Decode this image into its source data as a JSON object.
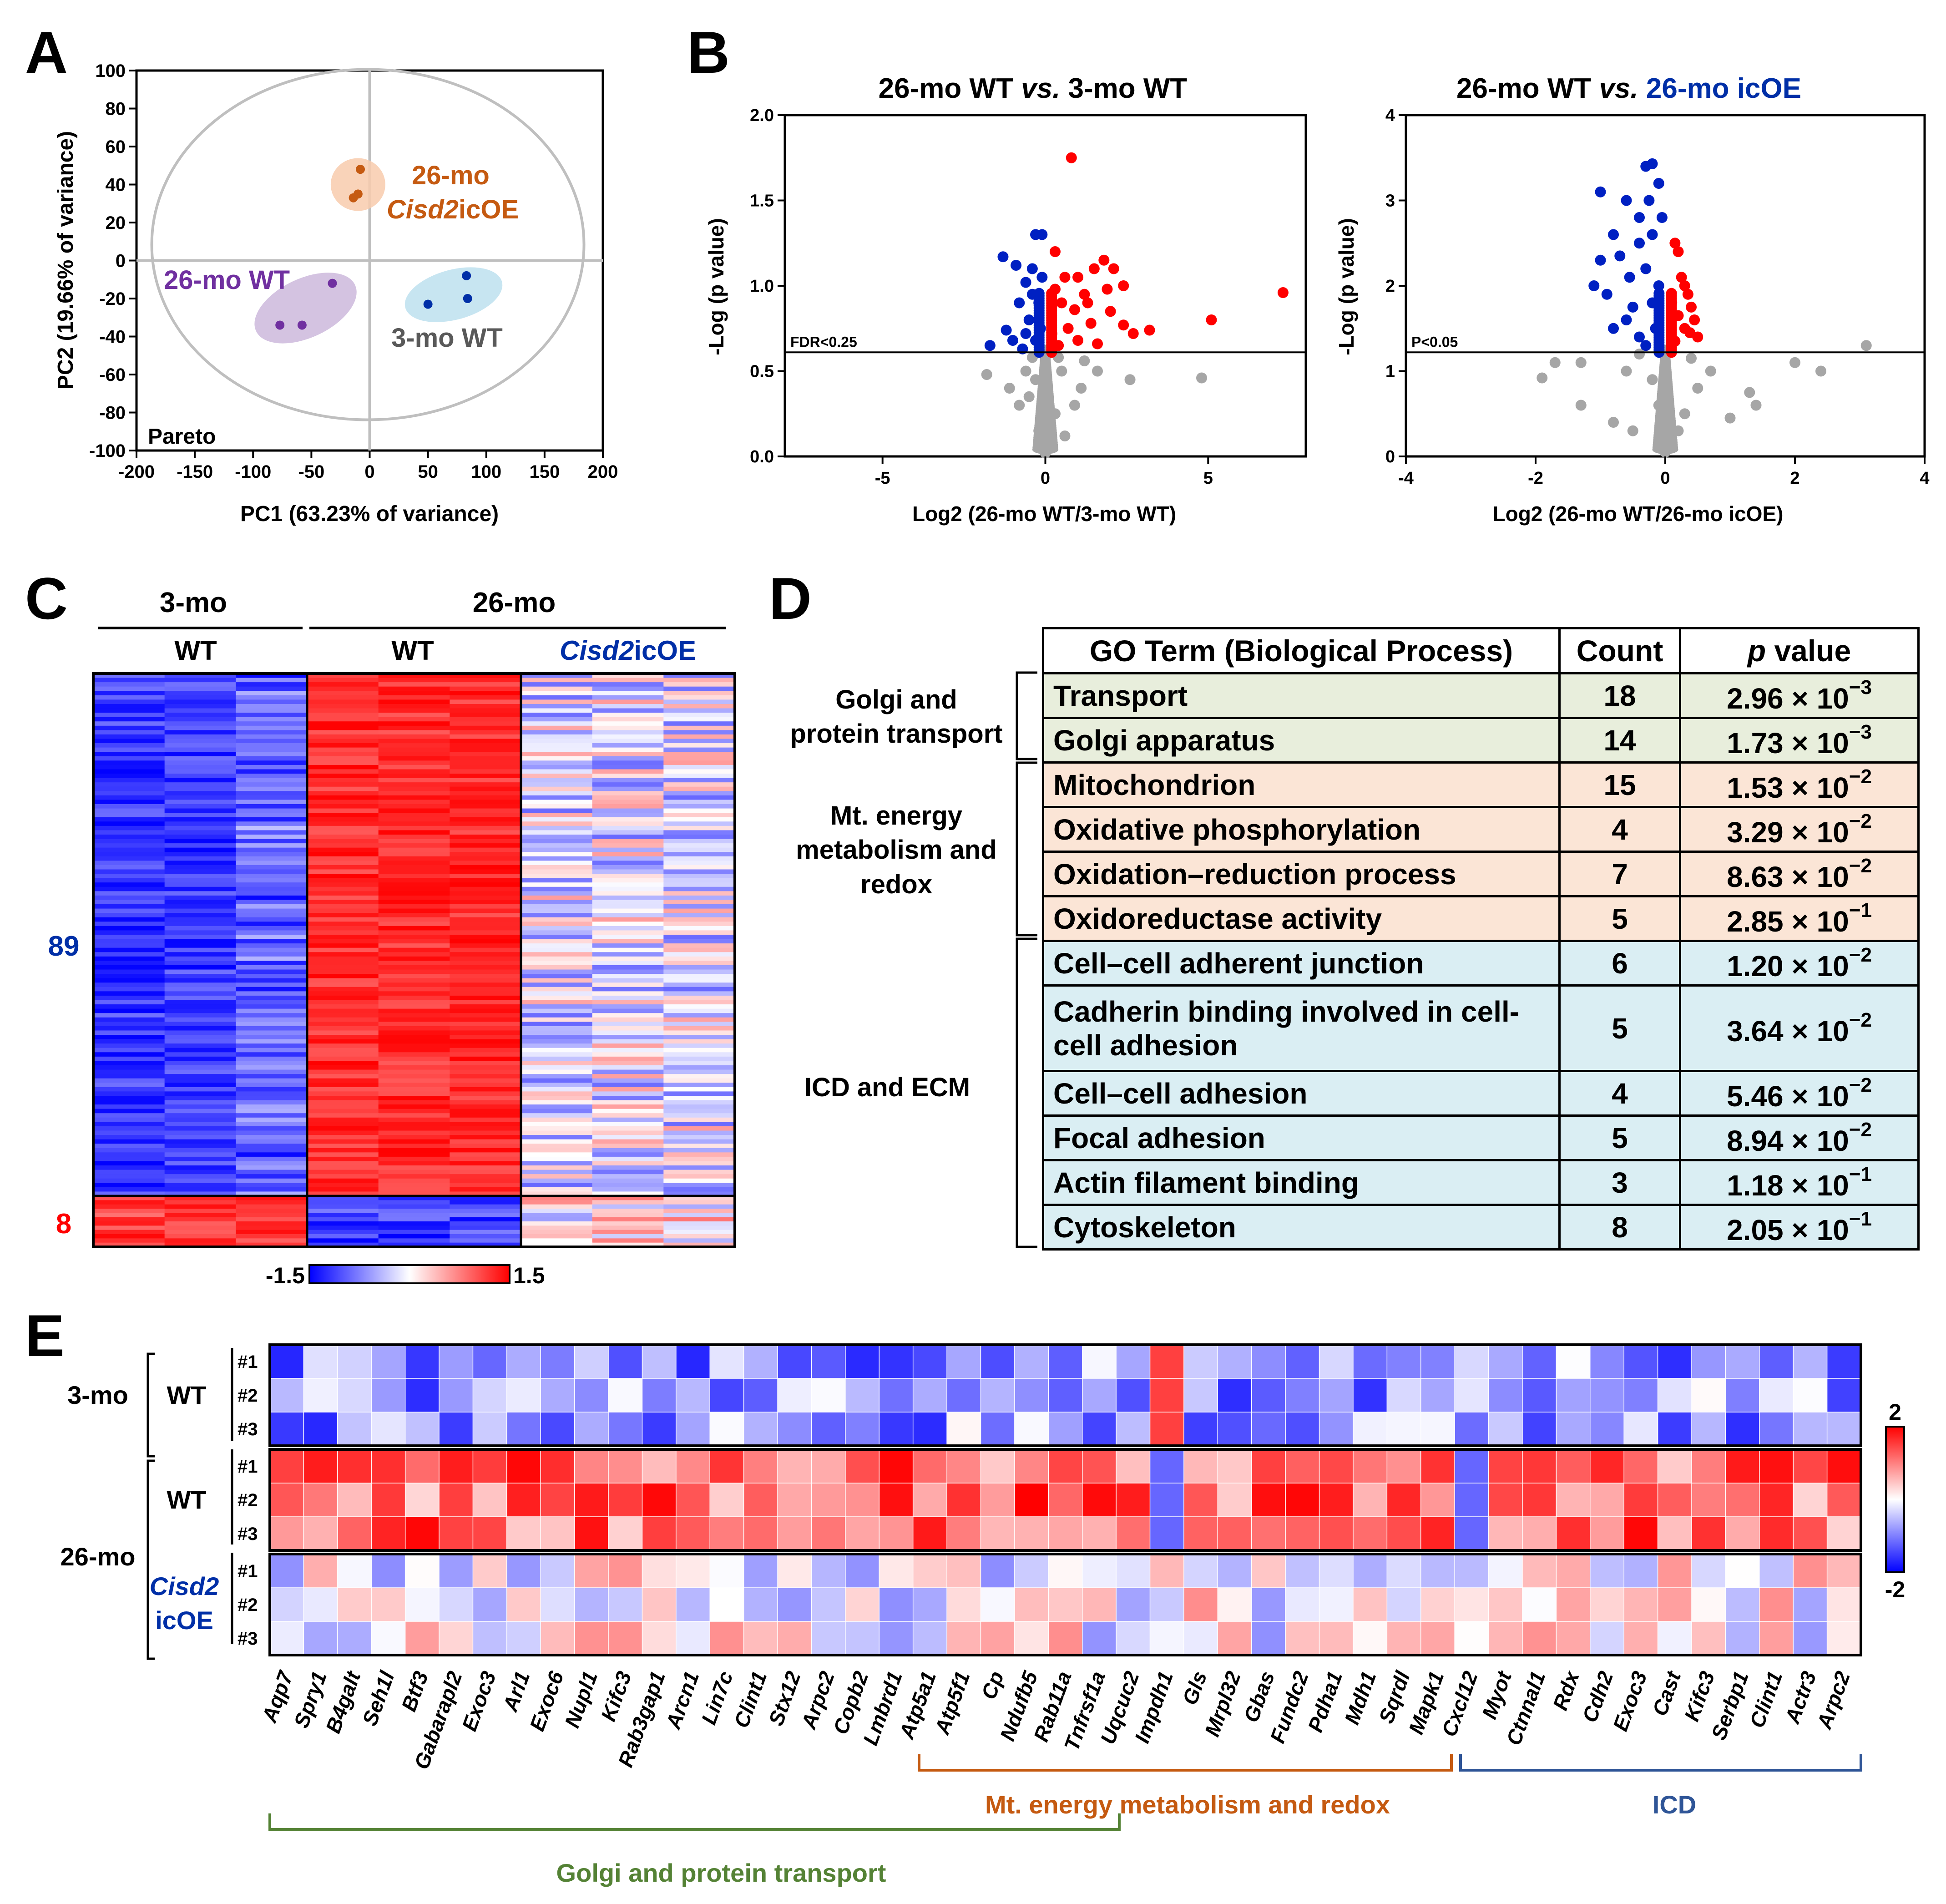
{
  "panels": {
    "A": "A",
    "B": "B",
    "C": "C",
    "D": "D",
    "E": "E"
  },
  "chart_data": [
    {
      "type": "scatter",
      "id": "pca",
      "title": "",
      "xlabel": "PC1 (63.23% of variance)",
      "ylabel": "PC2 (19.66% of variance)",
      "xlim": [
        -200,
        200
      ],
      "ylim": [
        -100,
        100
      ],
      "xticks": [
        -200,
        -150,
        -100,
        -50,
        0,
        50,
        100,
        150,
        200
      ],
      "yticks": [
        100,
        80,
        60,
        40,
        20,
        0,
        -20,
        -40,
        -60,
        -80,
        -100
      ],
      "annotation": "Pareto",
      "groups": [
        {
          "name_line1": "26-mo",
          "name_line2": "Cisd2",
          "name_line2b": "icOE",
          "color": "#c55a11",
          "fill": "#f8cbad",
          "points": [
            [
              -8,
              48
            ],
            [
              -10,
              35
            ],
            [
              -14,
              33
            ]
          ]
        },
        {
          "name": "26-mo WT",
          "color": "#7030a0",
          "fill": "#cdb8dc",
          "points": [
            [
              -77,
              -34
            ],
            [
              -58,
              -34
            ],
            [
              -32,
              -12
            ]
          ]
        },
        {
          "name": "3-mo WT",
          "color": "#002fa7",
          "fill": "#bde0ef",
          "points": [
            [
              50,
              -23
            ],
            [
              83,
              -8
            ],
            [
              84,
              -20
            ]
          ]
        }
      ]
    },
    {
      "type": "scatter",
      "id": "volcano1",
      "title_a": "26-mo WT ",
      "title_b": "vs.",
      "title_c": " 3-mo WT",
      "xlabel": "Log2 (26-mo WT/3-mo WT)",
      "ylabel": "-Log (p value)",
      "xlim": [
        -8,
        8
      ],
      "ylim": [
        0,
        2.0
      ],
      "xticks": [
        -5,
        0,
        5
      ],
      "yticks": [
        2.0,
        1.5,
        1.0,
        0.5,
        0.0
      ],
      "threshold": 0.61,
      "threshold_label": "FDR<0.25",
      "up_points": [
        [
          0.8,
          1.75
        ],
        [
          0.3,
          1.2
        ],
        [
          0.6,
          1.05
        ],
        [
          1.0,
          1.05
        ],
        [
          1.5,
          1.1
        ],
        [
          1.8,
          1.15
        ],
        [
          2.1,
          1.1
        ],
        [
          2.4,
          1.0
        ],
        [
          1.2,
          0.95
        ],
        [
          1.9,
          0.98
        ],
        [
          2.0,
          0.85
        ],
        [
          2.4,
          0.77
        ],
        [
          2.7,
          0.72
        ],
        [
          3.2,
          0.74
        ],
        [
          5.1,
          0.8
        ],
        [
          7.3,
          0.96
        ],
        [
          1.4,
          0.78
        ],
        [
          1.0,
          0.68
        ],
        [
          0.5,
          0.9
        ],
        [
          0.7,
          0.75
        ],
        [
          0.4,
          0.65
        ],
        [
          1.6,
          0.66
        ],
        [
          0.9,
          0.86
        ],
        [
          0.3,
          0.98
        ],
        [
          0.2,
          0.72
        ],
        [
          1.3,
          0.9
        ]
      ],
      "down_points": [
        [
          -0.3,
          1.3
        ],
        [
          -0.1,
          1.3
        ],
        [
          -1.3,
          1.17
        ],
        [
          -0.9,
          1.12
        ],
        [
          -0.6,
          1.02
        ],
        [
          -0.8,
          0.9
        ],
        [
          -0.4,
          0.95
        ],
        [
          -1.7,
          0.65
        ],
        [
          -1.2,
          0.74
        ],
        [
          -0.5,
          0.8
        ],
        [
          -0.2,
          0.9
        ],
        [
          -1.0,
          0.68
        ],
        [
          -0.3,
          0.68
        ],
        [
          -0.1,
          1.05
        ],
        [
          -0.7,
          0.63
        ],
        [
          -0.4,
          1.1
        ],
        [
          -0.15,
          0.75
        ],
        [
          -0.6,
          0.72
        ]
      ],
      "ns_points": [
        [
          4.8,
          0.46
        ],
        [
          0.0,
          0.55
        ],
        [
          -0.3,
          0.45
        ],
        [
          0.5,
          0.5
        ],
        [
          -0.5,
          0.35
        ],
        [
          0.3,
          0.25
        ],
        [
          -0.2,
          0.15
        ],
        [
          0.1,
          0.05
        ],
        [
          -1.8,
          0.48
        ],
        [
          1.6,
          0.5
        ],
        [
          2.6,
          0.45
        ],
        [
          -0.8,
          0.3
        ],
        [
          0.9,
          0.3
        ],
        [
          0.0,
          0.35
        ],
        [
          0.2,
          0.1
        ],
        [
          -0.1,
          0.2
        ],
        [
          0.6,
          0.12
        ],
        [
          -0.6,
          0.5
        ],
        [
          1.1,
          0.4
        ],
        [
          -1.1,
          0.4
        ],
        [
          0.0,
          0.02
        ],
        [
          0.4,
          0.58
        ],
        [
          -0.4,
          0.58
        ],
        [
          1.2,
          0.56
        ]
      ]
    },
    {
      "type": "scatter",
      "id": "volcano2",
      "title_a": "26-mo WT ",
      "title_b": "vs.",
      "title_c": " 26-mo icOE",
      "xlabel": "Log2 (26-mo WT/26-mo icOE)",
      "ylabel": "-Log (p value)",
      "xlim": [
        -4,
        4
      ],
      "ylim": [
        0,
        4
      ],
      "xticks": [
        -4,
        -2,
        0,
        2,
        4
      ],
      "yticks": [
        4,
        3,
        2,
        1,
        0
      ],
      "threshold": 1.22,
      "threshold_label": "P<0.05",
      "up_points": [
        [
          0.15,
          2.5
        ],
        [
          0.2,
          2.4
        ],
        [
          0.25,
          2.1
        ],
        [
          0.3,
          2.0
        ],
        [
          0.35,
          1.9
        ],
        [
          0.4,
          1.75
        ],
        [
          0.45,
          1.6
        ],
        [
          0.5,
          1.4
        ],
        [
          0.3,
          1.5
        ],
        [
          0.2,
          1.65
        ],
        [
          0.1,
          1.8
        ],
        [
          0.15,
          1.35
        ],
        [
          0.38,
          1.45
        ]
      ],
      "down_points": [
        [
          -0.3,
          3.4
        ],
        [
          -0.2,
          3.43
        ],
        [
          -0.1,
          3.2
        ],
        [
          -1.0,
          3.1
        ],
        [
          -0.6,
          3.0
        ],
        [
          -0.4,
          2.8
        ],
        [
          -0.8,
          2.6
        ],
        [
          -1.0,
          2.3
        ],
        [
          -0.7,
          2.35
        ],
        [
          -0.55,
          2.1
        ],
        [
          -1.1,
          2.0
        ],
        [
          -0.9,
          1.9
        ],
        [
          -0.4,
          2.5
        ],
        [
          -0.2,
          2.6
        ],
        [
          -0.3,
          2.2
        ],
        [
          -0.6,
          1.6
        ],
        [
          -0.1,
          2.0
        ],
        [
          -0.2,
          1.8
        ],
        [
          -0.4,
          1.4
        ],
        [
          -0.15,
          1.5
        ],
        [
          -0.3,
          1.3
        ],
        [
          -0.5,
          1.75
        ],
        [
          -0.8,
          1.5
        ],
        [
          -0.05,
          2.8
        ],
        [
          -0.25,
          3.0
        ]
      ],
      "ns_points": [
        [
          3.1,
          1.3
        ],
        [
          2.4,
          1.0
        ],
        [
          2.0,
          1.1
        ],
        [
          1.3,
          0.75
        ],
        [
          1.4,
          0.6
        ],
        [
          1.0,
          0.45
        ],
        [
          -1.3,
          1.1
        ],
        [
          -1.7,
          1.1
        ],
        [
          -1.9,
          0.92
        ],
        [
          -1.3,
          0.6
        ],
        [
          -0.8,
          0.4
        ],
        [
          -0.5,
          0.3
        ],
        [
          0.0,
          0.2
        ],
        [
          0.3,
          0.5
        ],
        [
          -0.2,
          0.9
        ],
        [
          0.5,
          0.8
        ],
        [
          0.0,
          0.05
        ],
        [
          -0.1,
          0.6
        ],
        [
          0.2,
          0.3
        ],
        [
          -0.6,
          1.0
        ],
        [
          0.7,
          1.0
        ],
        [
          -0.4,
          1.2
        ],
        [
          0.4,
          1.15
        ]
      ]
    },
    {
      "type": "heatmap",
      "id": "heatmapC",
      "group_top_left": "3-mo",
      "group_top_right": "26-mo",
      "col_groups": [
        {
          "label": "WT"
        },
        {
          "label": "WT"
        },
        {
          "label_a": "Cisd2",
          "label_b": "icOE",
          "color": "#002fa7"
        }
      ],
      "row_counts": [
        {
          "label": "89",
          "color": "#002fa7"
        },
        {
          "label": "8",
          "color": "#ff0000"
        }
      ],
      "scale_min": "-1.5",
      "scale_max": "1.5",
      "scale_range": [
        -1.5,
        1.5
      ]
    },
    {
      "type": "heatmap",
      "id": "heatmapE",
      "rows": [
        {
          "age": "3-mo",
          "geno": "WT",
          "rep": [
            "#1",
            "#2",
            "#3"
          ]
        },
        {
          "age": "26-mo",
          "geno": "WT",
          "rep": [
            "#1",
            "#2",
            "#3"
          ]
        },
        {
          "age": "",
          "geno_a": "Cisd2",
          "geno_b": "icOE",
          "rep": [
            "#1",
            "#2",
            "#3"
          ]
        }
      ],
      "genes": [
        "Aqp7",
        "Spry1",
        "B4galt",
        "Seh1l",
        "Btf3",
        "Gabarapl2",
        "Exoc3",
        "Arl1",
        "Exoc6",
        "Nupl1",
        "Kifc3",
        "Rab3gap1",
        "Arcn1",
        "Lin7c",
        "Clint1",
        "Stx12",
        "Arpc2",
        "Copb2",
        "Lmbrd1",
        "Atp5a1",
        "Atp5f1",
        "Cp",
        "Ndufb5",
        "Rab11a",
        "Tnfrsf1a",
        "Uqcuc2",
        "Impdh1",
        "Gls",
        "Mrpl32",
        "Gbas",
        "Fundc2",
        "Pdha1",
        "Mdh1",
        "Sqrdl",
        "Mapk1",
        "Cxcl12",
        "Myot",
        "Ctnnal1",
        "Rdx",
        "Cdh2",
        "Exoc3",
        "Cast",
        "Kifc3",
        "Serbp1",
        "Clint1",
        "Actr3",
        "Arpc2"
      ],
      "gene_groups": [
        {
          "label": "Golgi and protein transport",
          "color": "#548235"
        },
        {
          "label": "Mt. energy metabolism and redox",
          "color": "#c55a11"
        },
        {
          "label": "ICD",
          "color": "#2f5597"
        }
      ],
      "scale_max": "2",
      "scale_min": "-2",
      "scale_range": [
        -2,
        2
      ]
    }
  ],
  "table": {
    "header": {
      "term": "GO Term (Biological Process)",
      "count": "Count",
      "p_a": "p",
      "p_b": " value"
    },
    "groups": [
      {
        "label_1": "Golgi and",
        "label_2": "protein transport"
      },
      {
        "label_1": "Mt. energy",
        "label_2": "metabolism and",
        "label_3": "redox"
      },
      {
        "label_1": "ICD and ECM"
      }
    ],
    "rows": [
      {
        "term": "Transport",
        "count": "18",
        "mant": "2.96",
        "times": "×",
        "base": "10",
        "exp": "−3"
      },
      {
        "term": "Golgi apparatus",
        "count": "14",
        "mant": "1.73",
        "times": "×",
        "base": "10",
        "exp": "−3"
      },
      {
        "term": "Mitochondrion",
        "count": "15",
        "mant": "1.53",
        "times": "×",
        "base": "10",
        "exp": "−2"
      },
      {
        "term": "Oxidative phosphorylation",
        "count": "4",
        "mant": "3.29",
        "times": "×",
        "base": "10",
        "exp": "−2"
      },
      {
        "term": "Oxidation–reduction process",
        "count": "7",
        "mant": "8.63",
        "times": "×",
        "base": "10",
        "exp": "−2"
      },
      {
        "term": "Oxidoreductase activity",
        "count": "5",
        "mant": "2.85",
        "times": "×",
        "base": "10",
        "exp": "−1"
      },
      {
        "term": "Cell–cell adherent junction",
        "count": "6",
        "mant": "1.20",
        "times": "×",
        "base": "10",
        "exp": "−2"
      },
      {
        "term": "Cadherin binding involved in cell-cell adhesion",
        "count": "5",
        "mant": "3.64",
        "times": "×",
        "base": "10",
        "exp": "−2"
      },
      {
        "term": "Cell–cell adhesion",
        "count": "4",
        "mant": "5.46",
        "times": "×",
        "base": "10",
        "exp": "−2"
      },
      {
        "term": "Focal adhesion",
        "count": "5",
        "mant": "8.94",
        "times": "×",
        "base": "10",
        "exp": "−2"
      },
      {
        "term": "Actin filament binding",
        "count": "3",
        "mant": "1.18",
        "times": "×",
        "base": "10",
        "exp": "−1"
      },
      {
        "term": "Cytoskeleton",
        "count": "8",
        "mant": "2.05",
        "times": "×",
        "base": "10",
        "exp": "−1"
      }
    ]
  }
}
